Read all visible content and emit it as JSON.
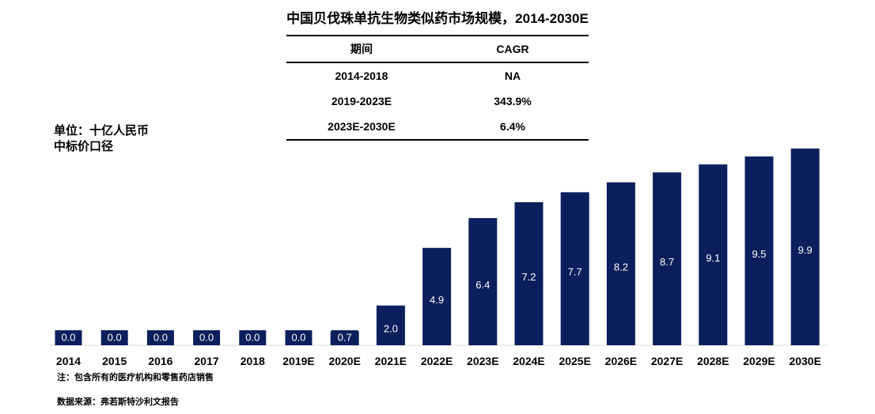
{
  "title": "中国贝伐珠单抗生物类似药市场规模，2014-2030E",
  "unit_line1": "单位：十亿人民币",
  "unit_line2": "中标价口径",
  "cagr_table": {
    "headers": [
      "期间",
      "CAGR"
    ],
    "rows": [
      [
        "2014-2018",
        "NA"
      ],
      [
        "2019-2023E",
        "343.9%"
      ],
      [
        "2023E-2030E",
        "6.4%"
      ]
    ]
  },
  "note": "注：包含所有的医疗机构和零售药店销售",
  "source": "数据来源：弗若斯特沙利文报告",
  "colors": {
    "bar": "#0b1f5c",
    "label": "#ffffff",
    "axis": "#d9d9d9"
  },
  "chart_data": {
    "type": "bar",
    "categories": [
      "2014",
      "2015",
      "2016",
      "2017",
      "2018",
      "2019E",
      "2020E",
      "2021E",
      "2022E",
      "2023E",
      "2024E",
      "2025E",
      "2026E",
      "2027E",
      "2028E",
      "2029E",
      "2030E"
    ],
    "values": [
      0.0,
      0.0,
      0.0,
      0.0,
      0.0,
      0.0,
      0.7,
      2.0,
      4.9,
      6.4,
      7.2,
      7.7,
      8.2,
      8.7,
      9.1,
      9.5,
      9.9
    ],
    "value_labels": [
      "0.0",
      "0.0",
      "0.0",
      "0.0",
      "0.0",
      "0.0",
      "0.7",
      "2.0",
      "4.9",
      "6.4",
      "7.2",
      "7.7",
      "8.2",
      "8.7",
      "9.1",
      "9.5",
      "9.9"
    ],
    "ylim": [
      0,
      9.9
    ],
    "grid": false,
    "legend": "none"
  }
}
